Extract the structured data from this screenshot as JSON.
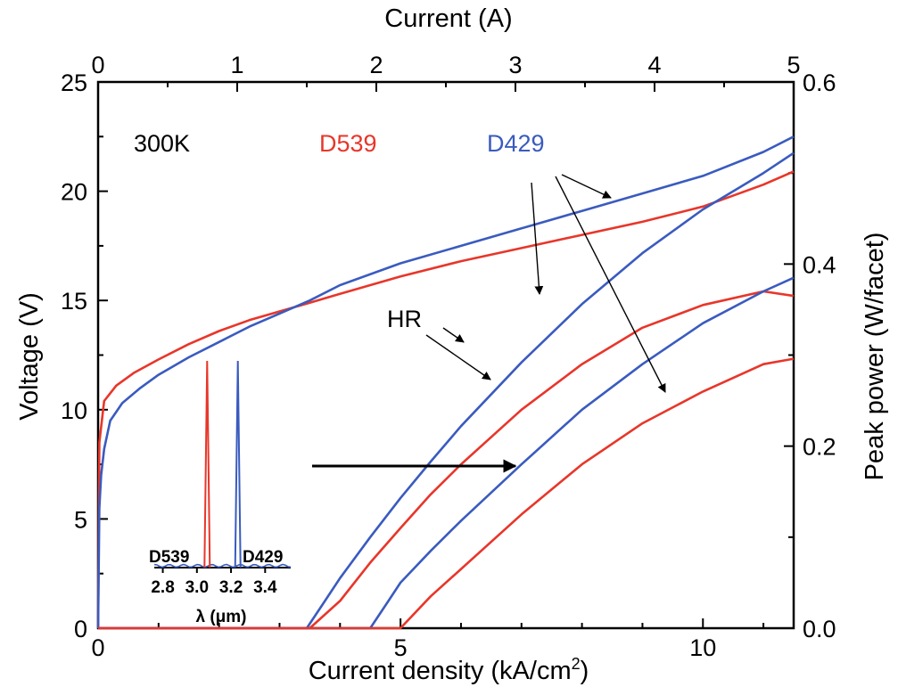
{
  "chart_data": {
    "type": "line",
    "xlabel": "Current density (kA/cm",
    "xlabel_sup": "2",
    "xlabel_end": ")",
    "x2label": "Current (A)",
    "ylabel": "Voltage (V)",
    "y2label": "Peak power (W/facet)",
    "xlim": [
      0,
      11.5
    ],
    "x2lim": [
      0,
      5
    ],
    "ylim": [
      0,
      25
    ],
    "y2lim": [
      0,
      0.6
    ],
    "x_ticks": [
      "0",
      "5",
      "10"
    ],
    "x2_ticks": [
      "0",
      "1",
      "2",
      "3",
      "4",
      "5"
    ],
    "y_ticks": [
      "0",
      "5",
      "10",
      "15",
      "20",
      "25"
    ],
    "y2_ticks": [
      "0.0",
      "0.2",
      "0.4",
      "0.6"
    ],
    "annotations": {
      "temperature": "300K",
      "hr": "HR",
      "d539_label": "D539",
      "d429_label": "D429"
    },
    "colors": {
      "D539": "#e8362a",
      "D429": "#3a5bbf",
      "axis": "#000000"
    },
    "series": [
      {
        "name": "D539",
        "kind": "voltage",
        "axis": "left",
        "x": [
          0,
          0.02,
          0.1,
          0.3,
          0.6,
          1,
          1.5,
          2,
          2.5,
          3,
          3.5,
          4,
          5,
          6,
          7,
          8,
          9,
          10,
          11,
          11.5
        ],
        "y": [
          0,
          8.5,
          10.4,
          11.1,
          11.7,
          12.3,
          13.0,
          13.6,
          14.1,
          14.5,
          14.9,
          15.3,
          16.1,
          16.8,
          17.4,
          18.0,
          18.6,
          19.3,
          20.3,
          20.9
        ]
      },
      {
        "name": "D429",
        "kind": "voltage",
        "axis": "left",
        "x": [
          0,
          0.02,
          0.05,
          0.1,
          0.2,
          0.4,
          0.7,
          1,
          1.5,
          2,
          2.5,
          3,
          3.5,
          4,
          5,
          6,
          7,
          8,
          9,
          10,
          11,
          11.5
        ],
        "y": [
          0,
          5.5,
          7.0,
          8.2,
          9.5,
          10.3,
          11.0,
          11.6,
          12.4,
          13.1,
          13.8,
          14.4,
          15.0,
          15.7,
          16.7,
          17.5,
          18.3,
          19.1,
          19.9,
          20.7,
          21.8,
          22.5
        ]
      },
      {
        "name": "D429",
        "kind": "power_HR",
        "axis": "right",
        "x": [
          3.45,
          3.7,
          4,
          4.5,
          5,
          5.5,
          6,
          7,
          8,
          9,
          10,
          11,
          11.5
        ],
        "y": [
          0,
          0.025,
          0.055,
          0.1,
          0.143,
          0.183,
          0.222,
          0.292,
          0.356,
          0.412,
          0.46,
          0.5,
          0.522
        ]
      },
      {
        "name": "D539",
        "kind": "power_HR",
        "axis": "right",
        "x": [
          3.5,
          4,
          4.5,
          5,
          5.5,
          6,
          7,
          8,
          9,
          10,
          11,
          11.5
        ],
        "y": [
          0,
          0.03,
          0.072,
          0.11,
          0.147,
          0.18,
          0.24,
          0.29,
          0.33,
          0.355,
          0.37,
          0.365
        ]
      },
      {
        "name": "D429",
        "kind": "power",
        "axis": "right",
        "x": [
          4.5,
          4.8,
          5,
          5.5,
          6,
          7,
          8,
          9,
          10,
          11,
          11.5
        ],
        "y": [
          0,
          0.03,
          0.05,
          0.085,
          0.118,
          0.18,
          0.24,
          0.29,
          0.335,
          0.37,
          0.385
        ]
      },
      {
        "name": "D539",
        "kind": "power",
        "axis": "right",
        "x": [
          5.0,
          5.5,
          6,
          7,
          8,
          9,
          10,
          11,
          11.5
        ],
        "y": [
          0,
          0.035,
          0.065,
          0.125,
          0.18,
          0.225,
          0.26,
          0.29,
          0.296
        ]
      }
    ],
    "inset": {
      "xlabel": "λ (μm)",
      "x_ticks": [
        "2.8",
        "3.0",
        "3.2",
        "3.4"
      ],
      "xlim": [
        2.75,
        3.55
      ],
      "peaks": [
        {
          "name": "D539",
          "wavelength": 3.06,
          "label": "D539"
        },
        {
          "name": "D429",
          "wavelength": 3.24,
          "label": "D429"
        }
      ]
    }
  }
}
